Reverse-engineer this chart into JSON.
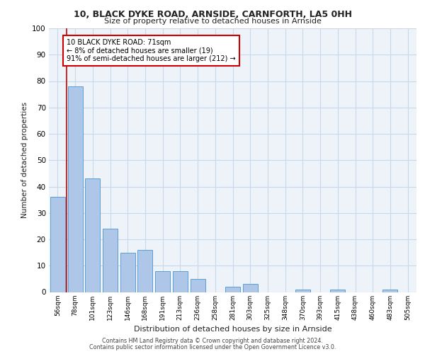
{
  "title1": "10, BLACK DYKE ROAD, ARNSIDE, CARNFORTH, LA5 0HH",
  "title2": "Size of property relative to detached houses in Arnside",
  "xlabel": "Distribution of detached houses by size in Arnside",
  "ylabel": "Number of detached properties",
  "categories": [
    "56sqm",
    "78sqm",
    "101sqm",
    "123sqm",
    "146sqm",
    "168sqm",
    "191sqm",
    "213sqm",
    "236sqm",
    "258sqm",
    "281sqm",
    "303sqm",
    "325sqm",
    "348sqm",
    "370sqm",
    "393sqm",
    "415sqm",
    "438sqm",
    "460sqm",
    "483sqm",
    "505sqm"
  ],
  "values": [
    36,
    78,
    43,
    24,
    15,
    16,
    8,
    8,
    5,
    0,
    2,
    3,
    0,
    0,
    1,
    0,
    1,
    0,
    0,
    1,
    0
  ],
  "bar_color": "#aec6e8",
  "bar_edge_color": "#5a9fd4",
  "grid_color": "#c8d8e8",
  "bg_color": "#eef3f9",
  "annotation_line1": "10 BLACK DYKE ROAD: 71sqm",
  "annotation_line2": "← 8% of detached houses are smaller (19)",
  "annotation_line3": "91% of semi-detached houses are larger (212) →",
  "annotation_box_color": "#cc0000",
  "footnote1": "Contains HM Land Registry data © Crown copyright and database right 2024.",
  "footnote2": "Contains public sector information licensed under the Open Government Licence v3.0.",
  "ylim": [
    0,
    100
  ],
  "yticks": [
    0,
    10,
    20,
    30,
    40,
    50,
    60,
    70,
    80,
    90,
    100
  ],
  "vline_xindex": 0.5
}
